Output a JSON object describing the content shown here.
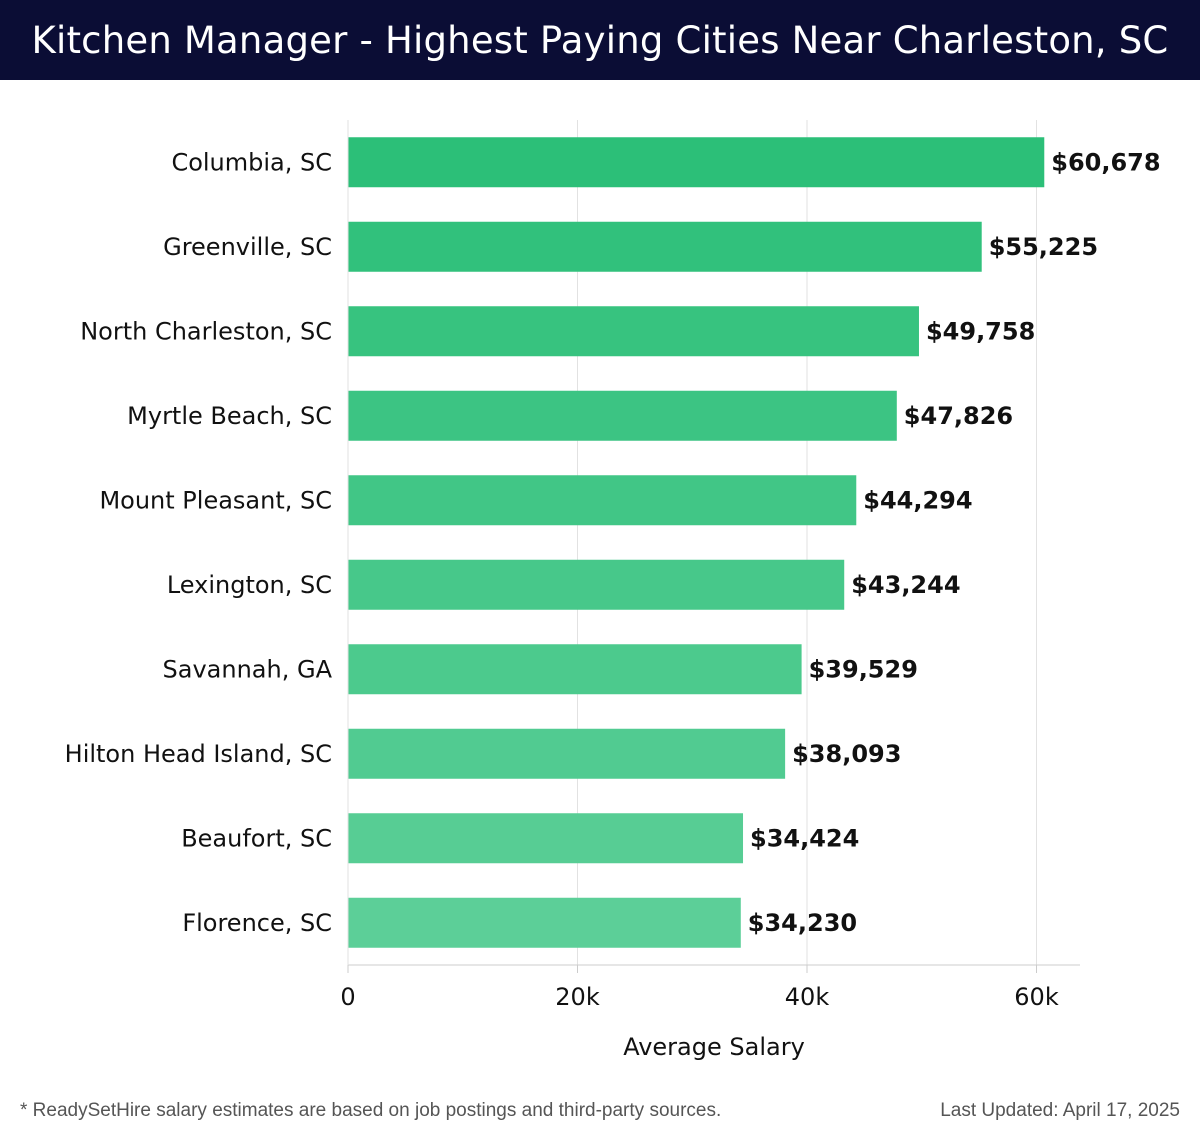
{
  "header": {
    "title": "Kitchen Manager - Highest Paying Cities Near Charleston, SC"
  },
  "chart_data": {
    "type": "bar",
    "orientation": "horizontal",
    "title": "Kitchen Manager - Highest Paying Cities Near Charleston, SC",
    "xlabel": "Average Salary",
    "ylabel": "",
    "xlim": [
      0,
      60000
    ],
    "x_ticks": [
      {
        "value": 0,
        "label": "0"
      },
      {
        "value": 20000,
        "label": "20k"
      },
      {
        "value": 40000,
        "label": "40k"
      },
      {
        "value": 60000,
        "label": "60k"
      }
    ],
    "grid": true,
    "categories": [
      "Columbia, SC",
      "Greenville, SC",
      "North Charleston, SC",
      "Myrtle Beach, SC",
      "Mount Pleasant, SC",
      "Lexington, SC",
      "Savannah, GA",
      "Hilton Head Island, SC",
      "Beaufort, SC",
      "Florence, SC"
    ],
    "values": [
      60678,
      55225,
      49758,
      47826,
      44294,
      43244,
      39529,
      38093,
      34424,
      34230
    ],
    "value_labels": [
      "$60,678",
      "$55,225",
      "$49,758",
      "$47,826",
      "$44,294",
      "$43,244",
      "$39,529",
      "$38,093",
      "$34,424",
      "$34,230"
    ],
    "colors": {
      "bar_top": "#2cbf78",
      "bar_bottom": "#5ccf98",
      "grid": "#e2e2e2",
      "axis": "#cccccc",
      "text": "#111111"
    }
  },
  "footer": {
    "note": "* ReadySetHire salary estimates are based on job postings and third-party sources.",
    "updated": "Last Updated: April 17, 2025"
  }
}
